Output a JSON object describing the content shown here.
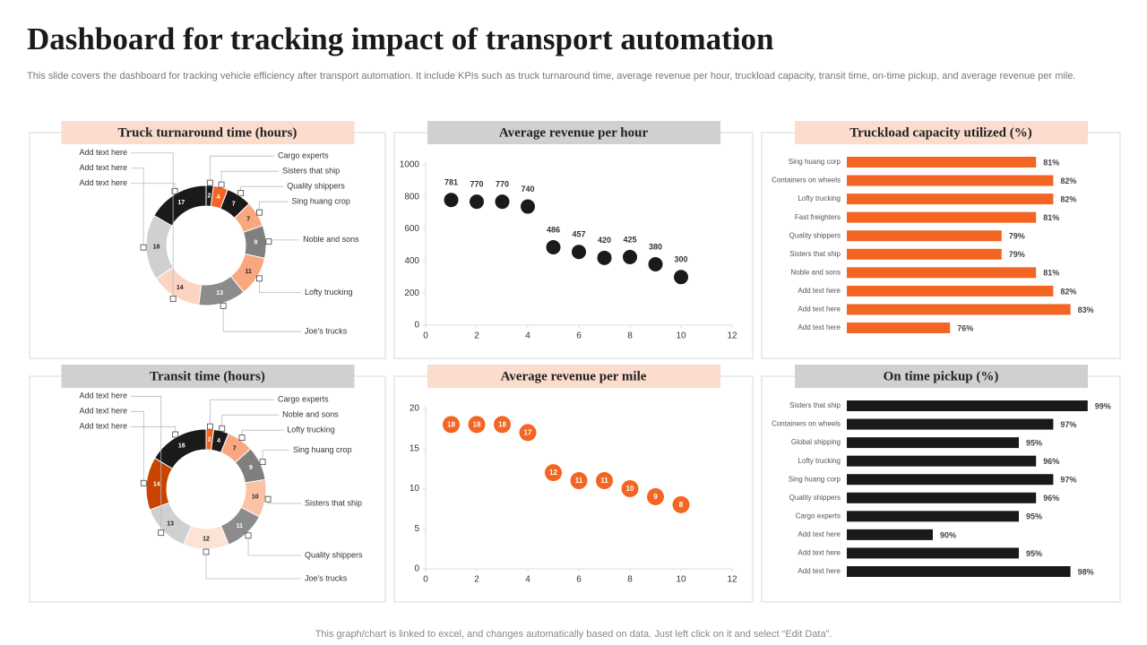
{
  "title": "Dashboard for tracking impact of transport automation",
  "description": "This slide covers the dashboard for tracking vehicle efficiency after transport automation. It include KPIs such as truck turnaround time, average revenue per hour, truckload capacity, transit time, on-time pickup, and average revenue per mile.",
  "footer": "This graph/chart is linked to excel,  and changes automatically based on data. Just left click on it and select “Edit Data”.",
  "chart_data": [
    {
      "type": "donut",
      "title": "Truck turnaround  time (hours)",
      "banner_color": "#fbdccd",
      "labels": [
        "Cargo experts",
        "Sisters that ship",
        "Quality shippers",
        "Sing huang crop",
        "Noble and sons",
        "Lofty trucking",
        "Joe's trucks",
        "Add text here",
        "Add text here",
        "Add text here"
      ],
      "values": [
        2,
        4,
        7,
        7,
        9,
        11,
        13,
        14,
        18,
        17
      ],
      "colors": [
        "#1a1a1a",
        "#f26522",
        "#1a1a1a",
        "#f9a77f",
        "#7f7f7f",
        "#f9a77f",
        "#8c8c8c",
        "#fbd5c2",
        "#d0d0d0",
        "#1a1a1a"
      ]
    },
    {
      "type": "scatter",
      "title": "Average revenue per hour",
      "banner_color": "#d0d0d0",
      "color": "#1a1a1a",
      "label_position": "above",
      "x": [
        1,
        2,
        3,
        4,
        5,
        6,
        7,
        8,
        9,
        10
      ],
      "values": [
        781,
        770,
        770,
        740,
        486,
        457,
        420,
        425,
        380,
        300
      ],
      "xlim": [
        0,
        12
      ],
      "xticks": [
        0,
        2,
        4,
        6,
        8,
        10,
        12
      ],
      "ylim": [
        0,
        1000
      ],
      "yticks": [
        0,
        200,
        400,
        600,
        800,
        1000
      ]
    },
    {
      "type": "hbar",
      "title": "Truckload  capacity  utilized  (%)",
      "banner_color": "#fbdccd",
      "color": "#f26522",
      "categories": [
        "Sing huang corp",
        "Containers on wheels",
        "Lofty trucking",
        "Fast freighters",
        "Quality shippers",
        "Sisters that ship",
        "Noble and sons",
        "Add text here",
        "Add text here",
        "Add text here"
      ],
      "values": [
        81,
        82,
        82,
        81,
        79,
        79,
        81,
        82,
        83,
        76
      ],
      "value_labels": [
        "81%",
        "82%",
        "82%",
        "81%",
        "79%",
        "79%",
        "81%",
        "82%",
        "83%",
        "76%"
      ],
      "xlim": [
        70,
        85
      ]
    },
    {
      "type": "donut",
      "title": "Transit time (hours)",
      "banner_color": "#d0d0d0",
      "labels": [
        "Cargo experts",
        "Noble and sons",
        "Lofty trucking",
        "Sing huang crop",
        "Sisters that ship",
        "Quality shippers",
        "Joe's trucks",
        "Add text here",
        "Add text here",
        "Add text here"
      ],
      "values": [
        2,
        4,
        7,
        9,
        10,
        11,
        12,
        13,
        14,
        16
      ],
      "colors": [
        "#f26522",
        "#1a1a1a",
        "#f9a77f",
        "#7f7f7f",
        "#fbc2a5",
        "#8c8c8c",
        "#fbe3d6",
        "#d0d0d0",
        "#c84400",
        "#1a1a1a"
      ]
    },
    {
      "type": "scatter",
      "title": "Average revenue per mile",
      "banner_color": "#fbdccd",
      "color": "#f26522",
      "label_position": "inside",
      "x": [
        1,
        2,
        3,
        4,
        5,
        6,
        7,
        8,
        9,
        10
      ],
      "values": [
        18,
        18,
        18,
        17,
        12,
        11,
        11,
        10,
        9,
        8
      ],
      "xlim": [
        0,
        12
      ],
      "xticks": [
        0,
        2,
        4,
        6,
        8,
        10,
        12
      ],
      "ylim": [
        0,
        20
      ],
      "yticks": [
        0,
        5,
        10,
        15,
        20
      ]
    },
    {
      "type": "hbar",
      "title": "On time pickup (%)",
      "banner_color": "#d0d0d0",
      "color": "#1a1a1a",
      "categories": [
        "Sisters that ship",
        "Containers on wheels",
        "Global shipping",
        "Lofty trucking",
        "Sing huang corp",
        "Quality shippers",
        "Cargo experts",
        "Add text here",
        "Add text here",
        "Add text here"
      ],
      "values": [
        99,
        97,
        95,
        96,
        97,
        96,
        95,
        90,
        95,
        98
      ],
      "value_labels": [
        "99%",
        "97%",
        "95%",
        "96%",
        "97%",
        "96%",
        "95%",
        "90%",
        "95%",
        "98%"
      ],
      "xlim": [
        85,
        100
      ]
    }
  ]
}
